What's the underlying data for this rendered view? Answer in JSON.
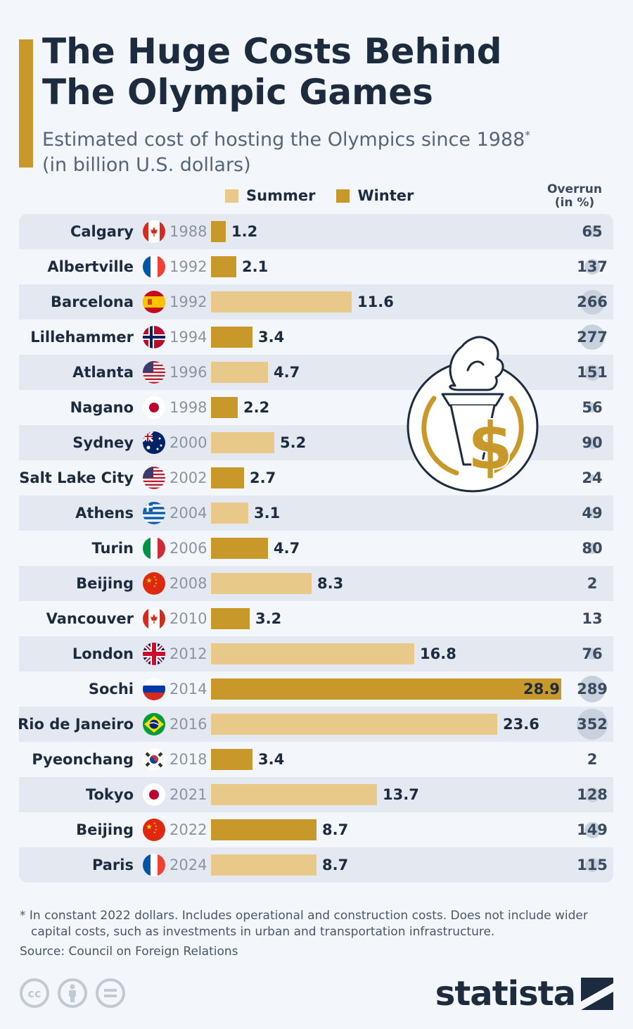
{
  "header": {
    "title_line1": "The Huge Costs Behind",
    "title_line2": "The Olympic Games",
    "subtitle_line1": "Estimated cost of hosting the Olympics since 1988",
    "subtitle_mark": "*",
    "subtitle_line2": "(in billion U.S. dollars)"
  },
  "legend": {
    "summer": "Summer",
    "winter": "Winter"
  },
  "overrun_header": {
    "line1": "Overrun",
    "line2": "(in %)"
  },
  "colors": {
    "summer": "#e9c98a",
    "winter": "#c9982b",
    "accent": "#c9982b",
    "text": "#1c2b3e"
  },
  "chart_data": {
    "type": "bar",
    "title": "The Huge Costs Behind The Olympic Games",
    "subtitle": "Estimated cost of hosting the Olympics since 1988* (in billion U.S. dollars)",
    "series": [
      {
        "name": "Summer",
        "color": "#e9c98a"
      },
      {
        "name": "Winter",
        "color": "#c9982b"
      }
    ],
    "xlim": [
      0,
      28.9
    ],
    "rows": [
      {
        "city": "Calgary",
        "flag": "canada-flag-icon",
        "year": "1988",
        "season": "Winter",
        "cost": 1.2,
        "cost_label": "1.2",
        "overrun": 65,
        "overrun_label": "65"
      },
      {
        "city": "Albertville",
        "flag": "france-flag-icon",
        "year": "1992",
        "season": "Winter",
        "cost": 2.1,
        "cost_label": "2.1",
        "overrun": 137,
        "overrun_label": "137"
      },
      {
        "city": "Barcelona",
        "flag": "spain-flag-icon",
        "year": "1992",
        "season": "Summer",
        "cost": 11.6,
        "cost_label": "11.6",
        "overrun": 266,
        "overrun_label": "266"
      },
      {
        "city": "Lillehammer",
        "flag": "norway-flag-icon",
        "year": "1994",
        "season": "Winter",
        "cost": 3.4,
        "cost_label": "3.4",
        "overrun": 277,
        "overrun_label": "277"
      },
      {
        "city": "Atlanta",
        "flag": "usa-flag-icon",
        "year": "1996",
        "season": "Summer",
        "cost": 4.7,
        "cost_label": "4.7",
        "overrun": 151,
        "overrun_label": "151"
      },
      {
        "city": "Nagano",
        "flag": "japan-flag-icon",
        "year": "1998",
        "season": "Winter",
        "cost": 2.2,
        "cost_label": "2.2",
        "overrun": 56,
        "overrun_label": "56"
      },
      {
        "city": "Sydney",
        "flag": "australia-flag-icon",
        "year": "2000",
        "season": "Summer",
        "cost": 5.2,
        "cost_label": "5.2",
        "overrun": 90,
        "overrun_label": "90"
      },
      {
        "city": "Salt Lake City",
        "flag": "usa-flag-icon",
        "year": "2002",
        "season": "Winter",
        "cost": 2.7,
        "cost_label": "2.7",
        "overrun": 24,
        "overrun_label": "24"
      },
      {
        "city": "Athens",
        "flag": "greece-flag-icon",
        "year": "2004",
        "season": "Summer",
        "cost": 3.1,
        "cost_label": "3.1",
        "overrun": 49,
        "overrun_label": "49"
      },
      {
        "city": "Turin",
        "flag": "italy-flag-icon",
        "year": "2006",
        "season": "Winter",
        "cost": 4.7,
        "cost_label": "4.7",
        "overrun": 80,
        "overrun_label": "80"
      },
      {
        "city": "Beijing",
        "flag": "china-flag-icon",
        "year": "2008",
        "season": "Summer",
        "cost": 8.3,
        "cost_label": "8.3",
        "overrun": 2,
        "overrun_label": "2"
      },
      {
        "city": "Vancouver",
        "flag": "canada-flag-icon",
        "year": "2010",
        "season": "Winter",
        "cost": 3.2,
        "cost_label": "3.2",
        "overrun": 13,
        "overrun_label": "13"
      },
      {
        "city": "London",
        "flag": "uk-flag-icon",
        "year": "2012",
        "season": "Summer",
        "cost": 16.8,
        "cost_label": "16.8",
        "overrun": 76,
        "overrun_label": "76"
      },
      {
        "city": "Sochi",
        "flag": "russia-flag-icon",
        "year": "2014",
        "season": "Winter",
        "cost": 28.9,
        "cost_label": "28.9",
        "overrun": 289,
        "overrun_label": "289"
      },
      {
        "city": "Rio de Janeiro",
        "flag": "brazil-flag-icon",
        "year": "2016",
        "season": "Summer",
        "cost": 23.6,
        "cost_label": "23.6",
        "overrun": 352,
        "overrun_label": "352"
      },
      {
        "city": "Pyeonchang",
        "flag": "south-korea-flag-icon",
        "year": "2018",
        "season": "Winter",
        "cost": 3.4,
        "cost_label": "3.4",
        "overrun": 2,
        "overrun_label": "2"
      },
      {
        "city": "Tokyo",
        "flag": "japan-flag-icon",
        "year": "2021",
        "season": "Summer",
        "cost": 13.7,
        "cost_label": "13.7",
        "overrun": 128,
        "overrun_label": "128"
      },
      {
        "city": "Beijing",
        "flag": "china-flag-icon",
        "year": "2022",
        "season": "Winter",
        "cost": 8.7,
        "cost_label": "8.7",
        "overrun": 149,
        "overrun_label": "149"
      },
      {
        "city": "Paris",
        "flag": "france-flag-icon",
        "year": "2024",
        "season": "Summer",
        "cost": 8.7,
        "cost_label": "8.7",
        "overrun": 115,
        "overrun_label": "115"
      }
    ]
  },
  "decoration": {
    "icon": "olympic-torch-dollar-icon"
  },
  "footer": {
    "note_line1": "* In constant 2022 dollars. Includes operational and construction costs. Does not include wider",
    "note_line2": "capital costs, such as investments in urban and transportation infrastructure.",
    "source": "Source: Council on Foreign Relations",
    "license_icons": [
      "creative-commons-icon",
      "attribution-icon",
      "no-derivatives-icon"
    ],
    "brand": "statista"
  }
}
